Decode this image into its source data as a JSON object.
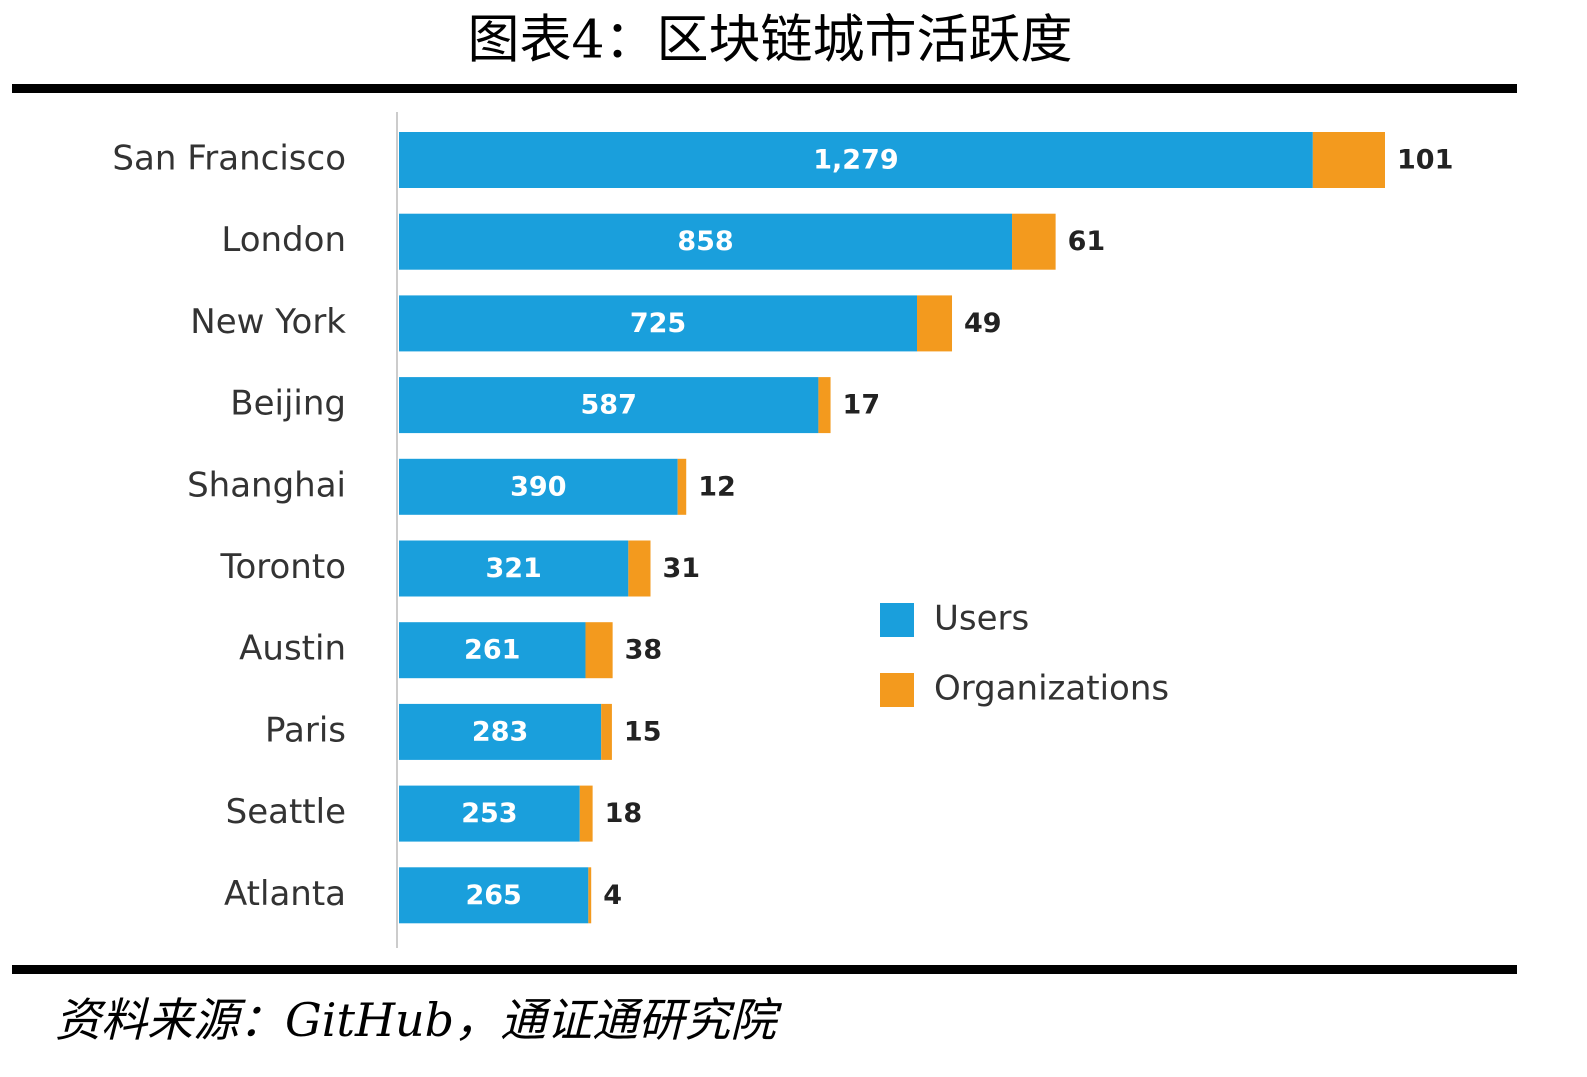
{
  "chart_data": {
    "type": "bar",
    "orientation": "horizontal",
    "stacked": true,
    "title": "图表4：区块链城市活跃度",
    "source": "资料来源：GitHub，通证通研究院",
    "categories": [
      "San Francisco",
      "London",
      "New York",
      "Beijing",
      "Shanghai",
      "Toronto",
      "Austin",
      "Paris",
      "Seattle",
      "Atlanta"
    ],
    "series": [
      {
        "name": "Users",
        "color": "#1a9fdc",
        "values": [
          1279,
          858,
          725,
          587,
          390,
          321,
          261,
          283,
          253,
          265
        ],
        "value_labels": [
          "1,279",
          "858",
          "725",
          "587",
          "390",
          "321",
          "261",
          "283",
          "253",
          "265"
        ]
      },
      {
        "name": "Organizations",
        "color": "#f39a1e",
        "values": [
          101,
          61,
          49,
          17,
          12,
          31,
          38,
          15,
          18,
          4
        ]
      }
    ]
  }
}
